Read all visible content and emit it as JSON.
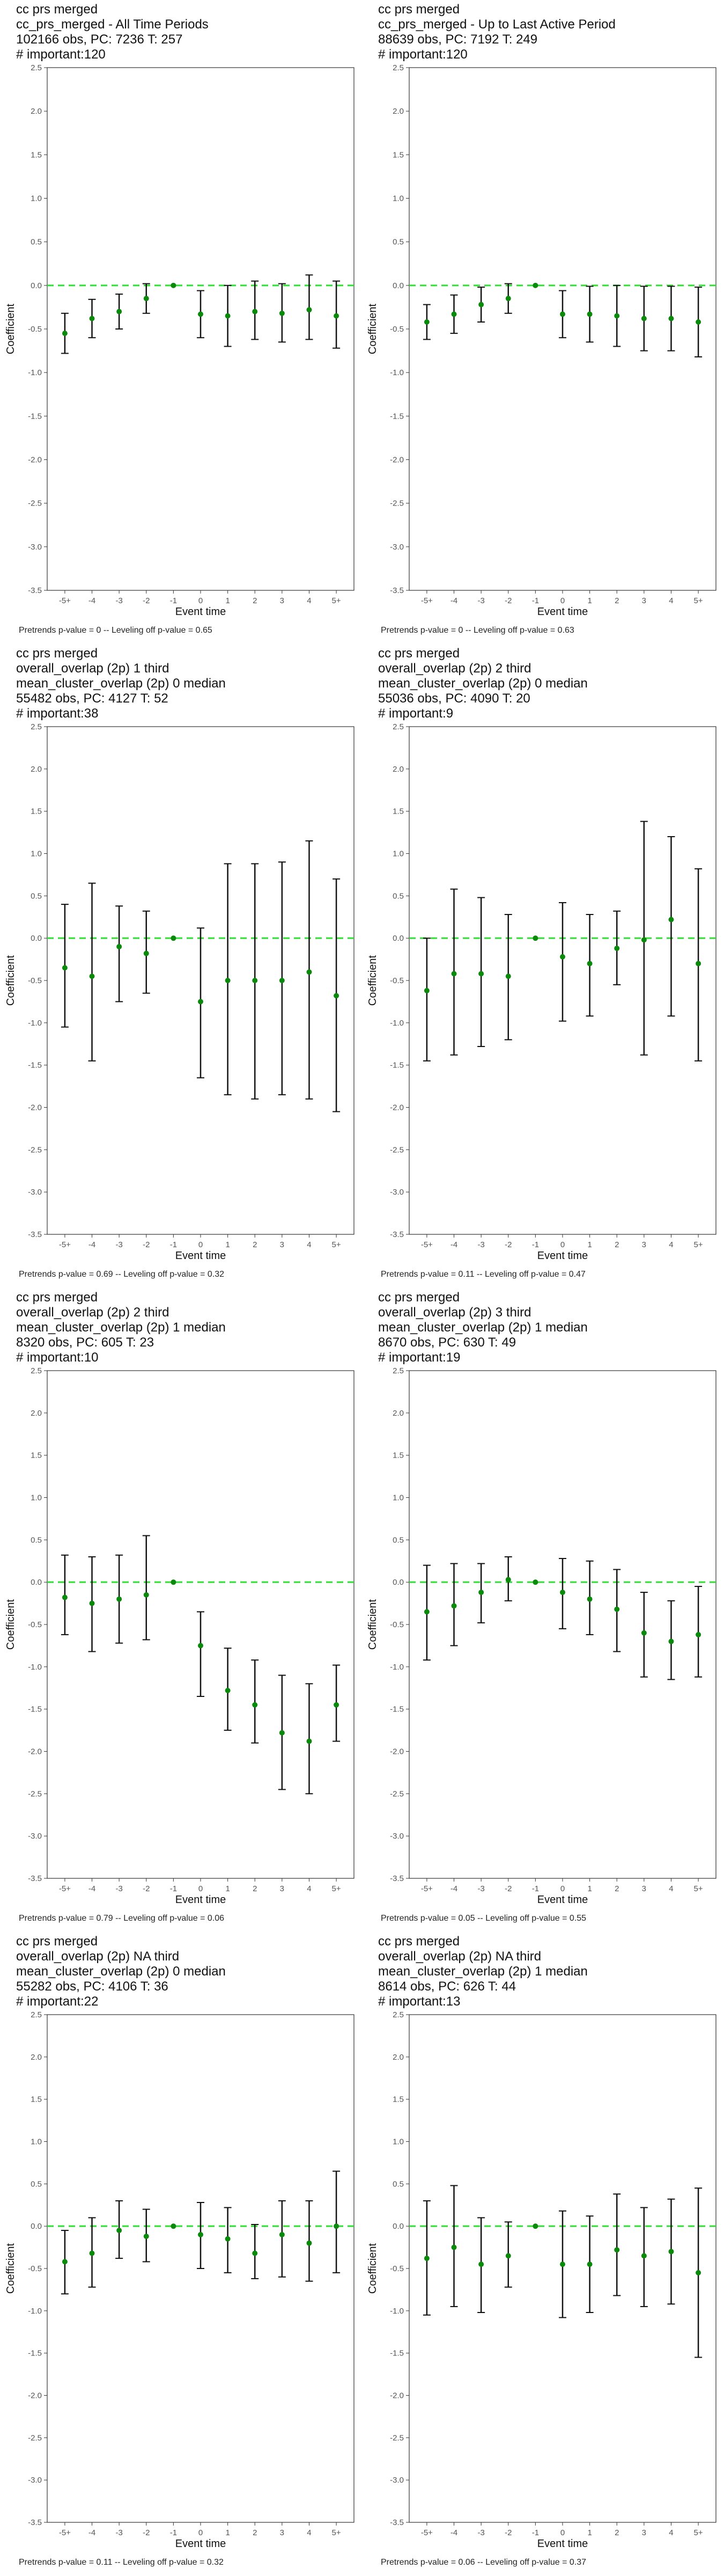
{
  "colors": {
    "point": "#0a8a0a",
    "ref_line": "#33dd33",
    "bar": "#111111",
    "axis": "#333333"
  },
  "chart_data": [
    {
      "type": "scatter",
      "title_lines": [
        "cc prs merged",
        "cc_prs_merged - All Time Periods",
        "102166 obs, PC: 7236 T: 257",
        "# important:120"
      ],
      "xlabel": "Event time",
      "ylabel": "Coefficient",
      "categories": [
        "-5+",
        "-4",
        "-3",
        "-2",
        "-1",
        "0",
        "1",
        "2",
        "3",
        "4",
        "5+"
      ],
      "ylim": [
        -3.5,
        2.5
      ],
      "yticks": [
        "2.5",
        "2.0",
        "1.5",
        "1.0",
        "0.5",
        "0.0",
        "-0.5",
        "-1.0",
        "-1.5",
        "-2.0",
        "-2.5",
        "-3.0",
        "-3.5"
      ],
      "ref_line": 0.0,
      "estimates": [
        -0.55,
        -0.38,
        -0.3,
        -0.15,
        0.0,
        -0.33,
        -0.35,
        -0.3,
        -0.32,
        -0.28,
        -0.35
      ],
      "ci_low": [
        -0.78,
        -0.6,
        -0.5,
        -0.32,
        0.0,
        -0.6,
        -0.7,
        -0.62,
        -0.65,
        -0.62,
        -0.72
      ],
      "ci_high": [
        -0.32,
        -0.16,
        -0.1,
        0.02,
        0.0,
        -0.06,
        0.0,
        0.05,
        0.02,
        0.12,
        0.05
      ],
      "caption": "Pretrends p-value = 0 -- Leveling off p-value = 0.65"
    },
    {
      "type": "scatter",
      "title_lines": [
        "cc prs merged",
        "cc_prs_merged - Up to Last Active Period",
        "88639 obs, PC: 7192 T: 249",
        "# important:120"
      ],
      "xlabel": "Event time",
      "ylabel": "Coefficient",
      "categories": [
        "-5+",
        "-4",
        "-3",
        "-2",
        "-1",
        "0",
        "1",
        "2",
        "3",
        "4",
        "5+"
      ],
      "ylim": [
        -3.5,
        2.5
      ],
      "yticks": [
        "2.5",
        "2.0",
        "1.5",
        "1.0",
        "0.5",
        "0.0",
        "-0.5",
        "-1.0",
        "-1.5",
        "-2.0",
        "-2.5",
        "-3.0",
        "-3.5"
      ],
      "ref_line": 0.0,
      "estimates": [
        -0.42,
        -0.33,
        -0.22,
        -0.15,
        0.0,
        -0.33,
        -0.33,
        -0.35,
        -0.38,
        -0.38,
        -0.42
      ],
      "ci_low": [
        -0.62,
        -0.55,
        -0.42,
        -0.32,
        0.0,
        -0.6,
        -0.65,
        -0.7,
        -0.75,
        -0.75,
        -0.82
      ],
      "ci_high": [
        -0.22,
        -0.11,
        -0.02,
        0.02,
        0.0,
        -0.06,
        -0.01,
        0.0,
        -0.01,
        -0.01,
        -0.02
      ],
      "caption": "Pretrends p-value = 0 -- Leveling off p-value = 0.63"
    },
    {
      "type": "scatter",
      "title_lines": [
        "cc prs merged",
        "overall_overlap (2p) 1 third",
        "mean_cluster_overlap (2p) 0 median",
        "55482 obs, PC: 4127 T: 52",
        "# important:38"
      ],
      "xlabel": "Event time",
      "ylabel": "Coefficient",
      "categories": [
        "-5+",
        "-4",
        "-3",
        "-2",
        "-1",
        "0",
        "1",
        "2",
        "3",
        "4",
        "5+"
      ],
      "ylim": [
        -3.5,
        2.5
      ],
      "yticks": [
        "2.5",
        "2.0",
        "1.5",
        "1.0",
        "0.5",
        "0.0",
        "-0.5",
        "-1.0",
        "-1.5",
        "-2.0",
        "-2.5",
        "-3.0",
        "-3.5"
      ],
      "ref_line": 0.0,
      "estimates": [
        -0.35,
        -0.45,
        -0.1,
        -0.18,
        0.0,
        -0.75,
        -0.5,
        -0.5,
        -0.5,
        -0.4,
        -0.68
      ],
      "ci_low": [
        -1.05,
        -1.45,
        -0.75,
        -0.65,
        0.0,
        -1.65,
        -1.85,
        -1.9,
        -1.85,
        -1.9,
        -2.05
      ],
      "ci_high": [
        0.4,
        0.65,
        0.38,
        0.32,
        0.0,
        0.12,
        0.88,
        0.88,
        0.9,
        1.15,
        0.7
      ],
      "caption": "Pretrends p-value = 0.69 -- Leveling off p-value = 0.32"
    },
    {
      "type": "scatter",
      "title_lines": [
        "cc prs merged",
        "overall_overlap (2p) 2 third",
        "mean_cluster_overlap (2p) 0 median",
        "55036 obs, PC: 4090 T: 20",
        "# important:9"
      ],
      "xlabel": "Event time",
      "ylabel": "Coefficient",
      "categories": [
        "-5+",
        "-4",
        "-3",
        "-2",
        "-1",
        "0",
        "1",
        "2",
        "3",
        "4",
        "5+"
      ],
      "ylim": [
        -3.5,
        2.5
      ],
      "yticks": [
        "2.5",
        "2.0",
        "1.5",
        "1.0",
        "0.5",
        "0.0",
        "-0.5",
        "-1.0",
        "-1.5",
        "-2.0",
        "-2.5",
        "-3.0",
        "-3.5"
      ],
      "ref_line": 0.0,
      "estimates": [
        -0.62,
        -0.42,
        -0.42,
        -0.45,
        0.0,
        -0.22,
        -0.3,
        -0.12,
        -0.02,
        0.22,
        -0.3
      ],
      "ci_low": [
        -1.45,
        -1.38,
        -1.28,
        -1.2,
        0.0,
        -0.98,
        -0.92,
        -0.55,
        -1.38,
        -0.92,
        -1.45
      ],
      "ci_high": [
        0.0,
        0.58,
        0.48,
        0.28,
        0.0,
        0.42,
        0.28,
        0.32,
        1.38,
        1.2,
        0.82
      ],
      "caption": "Pretrends p-value = 0.11 -- Leveling off p-value = 0.47"
    },
    {
      "type": "scatter",
      "title_lines": [
        "cc prs merged",
        "overall_overlap (2p) 2 third",
        "mean_cluster_overlap (2p) 1 median",
        "8320 obs, PC: 605 T: 23",
        "# important:10"
      ],
      "xlabel": "Event time",
      "ylabel": "Coefficient",
      "categories": [
        "-5+",
        "-4",
        "-3",
        "-2",
        "-1",
        "0",
        "1",
        "2",
        "3",
        "4",
        "5+"
      ],
      "ylim": [
        -3.5,
        2.5
      ],
      "yticks": [
        "2.5",
        "2.0",
        "1.5",
        "1.0",
        "0.5",
        "0.0",
        "-0.5",
        "-1.0",
        "-1.5",
        "-2.0",
        "-2.5",
        "-3.0",
        "-3.5"
      ],
      "ref_line": 0.0,
      "estimates": [
        -0.18,
        -0.25,
        -0.2,
        -0.15,
        0.0,
        -0.75,
        -1.28,
        -1.45,
        -1.78,
        -1.88,
        -1.45
      ],
      "ci_low": [
        -0.62,
        -0.82,
        -0.72,
        -0.68,
        0.0,
        -1.35,
        -1.75,
        -1.9,
        -2.45,
        -2.5,
        -1.88
      ],
      "ci_high": [
        0.32,
        0.3,
        0.32,
        0.55,
        0.0,
        -0.35,
        -0.78,
        -0.92,
        -1.1,
        -1.2,
        -0.98
      ],
      "caption": "Pretrends p-value = 0.79 -- Leveling off p-value = 0.06"
    },
    {
      "type": "scatter",
      "title_lines": [
        "cc prs merged",
        "overall_overlap (2p) 3 third",
        "mean_cluster_overlap (2p) 1 median",
        "8670 obs, PC: 630 T: 49",
        "# important:19"
      ],
      "xlabel": "Event time",
      "ylabel": "Coefficient",
      "categories": [
        "-5+",
        "-4",
        "-3",
        "-2",
        "-1",
        "0",
        "1",
        "2",
        "3",
        "4",
        "5+"
      ],
      "ylim": [
        -3.5,
        2.5
      ],
      "yticks": [
        "2.5",
        "2.0",
        "1.5",
        "1.0",
        "0.5",
        "0.0",
        "-0.5",
        "-1.0",
        "-1.5",
        "-2.0",
        "-2.5",
        "-3.0",
        "-3.5"
      ],
      "ref_line": 0.0,
      "estimates": [
        -0.35,
        -0.28,
        -0.12,
        0.03,
        0.0,
        -0.12,
        -0.2,
        -0.32,
        -0.6,
        -0.7,
        -0.62
      ],
      "ci_low": [
        -0.92,
        -0.75,
        -0.48,
        -0.22,
        0.0,
        -0.55,
        -0.62,
        -0.82,
        -1.12,
        -1.15,
        -1.12
      ],
      "ci_high": [
        0.2,
        0.22,
        0.22,
        0.3,
        0.0,
        0.28,
        0.25,
        0.15,
        -0.12,
        -0.22,
        -0.05
      ],
      "caption": "Pretrends p-value = 0.05 -- Leveling off p-value = 0.55"
    },
    {
      "type": "scatter",
      "title_lines": [
        "cc prs merged",
        "overall_overlap (2p) NA third",
        "mean_cluster_overlap (2p) 0 median",
        "55282 obs, PC: 4106 T: 36",
        "# important:22"
      ],
      "xlabel": "Event time",
      "ylabel": "Coefficient",
      "categories": [
        "-5+",
        "-4",
        "-3",
        "-2",
        "-1",
        "0",
        "1",
        "2",
        "3",
        "4",
        "5+"
      ],
      "ylim": [
        -3.5,
        2.5
      ],
      "yticks": [
        "2.5",
        "2.0",
        "1.5",
        "1.0",
        "0.5",
        "0.0",
        "-0.5",
        "-1.0",
        "-1.5",
        "-2.0",
        "-2.5",
        "-3.0",
        "-3.5"
      ],
      "ref_line": 0.0,
      "estimates": [
        -0.42,
        -0.32,
        -0.05,
        -0.12,
        0.0,
        -0.1,
        -0.15,
        -0.32,
        -0.1,
        -0.2,
        0.0
      ],
      "ci_low": [
        -0.8,
        -0.72,
        -0.38,
        -0.42,
        0.0,
        -0.5,
        -0.55,
        -0.62,
        -0.6,
        -0.65,
        -0.55
      ],
      "ci_high": [
        -0.05,
        0.1,
        0.3,
        0.2,
        0.0,
        0.28,
        0.22,
        0.02,
        0.3,
        0.3,
        0.65
      ],
      "caption": "Pretrends p-value = 0.11 -- Leveling off p-value = 0.32"
    },
    {
      "type": "scatter",
      "title_lines": [
        "cc prs merged",
        "overall_overlap (2p) NA third",
        "mean_cluster_overlap (2p) 1 median",
        "8614 obs, PC: 626 T: 44",
        "# important:13"
      ],
      "xlabel": "Event time",
      "ylabel": "Coefficient",
      "categories": [
        "-5+",
        "-4",
        "-3",
        "-2",
        "-1",
        "0",
        "1",
        "2",
        "3",
        "4",
        "5+"
      ],
      "ylim": [
        -3.5,
        2.5
      ],
      "yticks": [
        "2.5",
        "2.0",
        "1.5",
        "1.0",
        "0.5",
        "0.0",
        "-0.5",
        "-1.0",
        "-1.5",
        "-2.0",
        "-2.5",
        "-3.0",
        "-3.5"
      ],
      "ref_line": 0.0,
      "estimates": [
        -0.38,
        -0.25,
        -0.45,
        -0.35,
        0.0,
        -0.45,
        -0.45,
        -0.28,
        -0.35,
        -0.3,
        -0.55
      ],
      "ci_low": [
        -1.05,
        -0.95,
        -1.02,
        -0.72,
        0.0,
        -1.08,
        -1.02,
        -0.82,
        -0.95,
        -0.92,
        -1.55
      ],
      "ci_high": [
        0.3,
        0.48,
        0.1,
        0.05,
        0.0,
        0.18,
        0.12,
        0.38,
        0.22,
        0.32,
        0.45
      ],
      "caption": "Pretrends p-value = 0.06 -- Leveling off p-value = 0.37"
    }
  ]
}
